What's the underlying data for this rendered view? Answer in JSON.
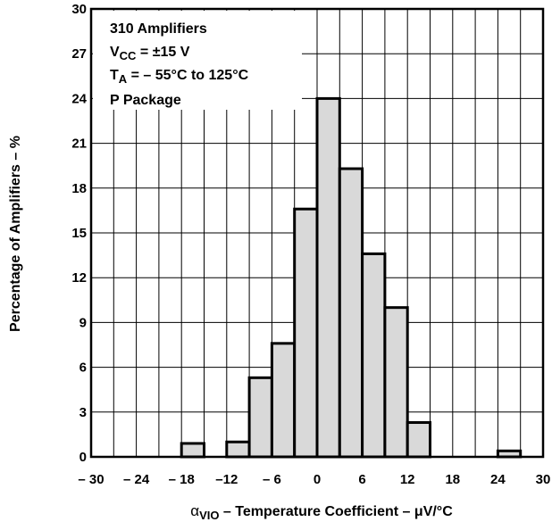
{
  "chart_data": {
    "type": "bar",
    "subtype": "histogram",
    "xlim": [
      -30,
      30
    ],
    "ylim": [
      0,
      30
    ],
    "bin_width": 3,
    "x_ticks": [
      -30,
      -24,
      -18,
      -12,
      -6,
      0,
      6,
      12,
      18,
      24,
      30
    ],
    "x_tick_labels": [
      "– 30",
      "– 24",
      "– 18",
      "–12",
      "– 6",
      "0",
      "6",
      "12",
      "18",
      "24",
      "30"
    ],
    "y_ticks": [
      0,
      3,
      6,
      9,
      12,
      15,
      18,
      21,
      24,
      27,
      30
    ],
    "y_tick_labels": [
      "0",
      "3",
      "6",
      "9",
      "12",
      "15",
      "18",
      "21",
      "24",
      "27",
      "30"
    ],
    "bins": [
      {
        "x0": -18,
        "x1": -15,
        "value": 0.9
      },
      {
        "x0": -12,
        "x1": -9,
        "value": 1.0
      },
      {
        "x0": -9,
        "x1": -6,
        "value": 5.3
      },
      {
        "x0": -6,
        "x1": -3,
        "value": 7.6
      },
      {
        "x0": -3,
        "x1": 0,
        "value": 16.6
      },
      {
        "x0": 0,
        "x1": 3,
        "value": 24.0
      },
      {
        "x0": 3,
        "x1": 6,
        "value": 19.3
      },
      {
        "x0": 6,
        "x1": 9,
        "value": 13.6
      },
      {
        "x0": 9,
        "x1": 12,
        "value": 10.0
      },
      {
        "x0": 12,
        "x1": 15,
        "value": 2.3
      },
      {
        "x0": 24,
        "x1": 27,
        "value": 0.4
      }
    ],
    "ylabel": "Percentage of Amplifiers – %",
    "xlabel": {
      "alpha": "α",
      "sub": "VIO",
      "rest": " – Temperature Coefficient – μV/°C"
    },
    "annotations": {
      "line1": "310 Amplifiers",
      "line2_pre": "V",
      "line2_sub": "CC",
      "line2_post": " = ±15 V",
      "line3_pre": "T",
      "line3_sub": "A",
      "line3_post": " = – 55°C to 125°C",
      "line4": "P Package"
    },
    "grid": true,
    "colors": {
      "fill": "#d9d9d9",
      "stroke": "#000000",
      "grid": "#000000"
    }
  }
}
